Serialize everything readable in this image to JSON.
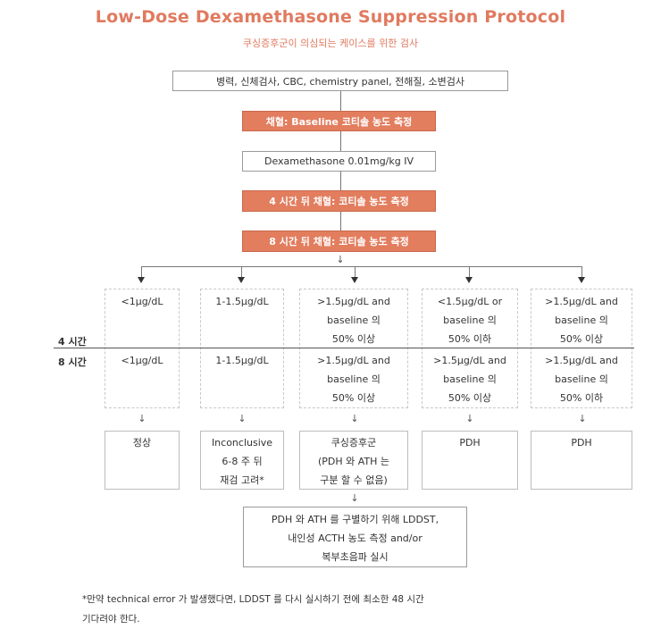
{
  "title": "Low-Dose Dexamethasone Suppression Protocol",
  "subtitle": "쿠싱증후군이 의심되는 케이스를 위한 검사",
  "steps": {
    "exam": "병력, 신체검사, CBC, chemistry panel, 전해질, 소변검사",
    "baseline": "채혈: Baseline 코티솔 농도 측정",
    "dexamethasone": "Dexamethasone 0.01mg/kg IV",
    "hour4": "4 시간 뒤 채혈: 코티솔 농도 측정",
    "hour8": "8 시간 뒤 채혈: 코티솔 농도 측정"
  },
  "row_labels": {
    "h4": "4 시간",
    "h8": "8 시간"
  },
  "columns": [
    {
      "h4": "<1μg/dL",
      "h8": "<1μg/dL",
      "result": "정상"
    },
    {
      "h4": "1-1.5μg/dL",
      "h8": "1-1.5μg/dL",
      "result": "Inconclusive\n6-8 주 뒤\n재검 고려*"
    },
    {
      "h4": ">1.5μg/dL and\nbaseline 의\n50% 이상",
      "h8": ">1.5μg/dL and\nbaseline 의\n50% 이상",
      "result": "쿠싱증후군\n(PDH 와 ATH 는\n구분 할 수 없음)"
    },
    {
      "h4": "<1.5μg/dL or\nbaseline 의\n50% 이하",
      "h8": ">1.5μg/dL and\nbaseline 의\n50% 이상",
      "result": "PDH"
    },
    {
      "h4": ">1.5μg/dL and\nbaseline 의\n50% 이상",
      "h8": ">1.5μg/dL and\nbaseline 의\n50% 이하",
      "result": "PDH"
    }
  ],
  "final": "PDH 와 ATH 를 구별하기 위해 LDDST,\n내인성 ACTH 농도 측정 and/or\n복부초음파 실시",
  "footnote": {
    "line1": "*만약 technical error 가 발생했다면, LDDST 를 다시 실시하기 전에 최소한 48 시간",
    "line2": "기다려야 한다."
  },
  "arrow_glyph": "↓",
  "colors": {
    "accent": "#e27d5e",
    "title": "#e07a5f"
  }
}
